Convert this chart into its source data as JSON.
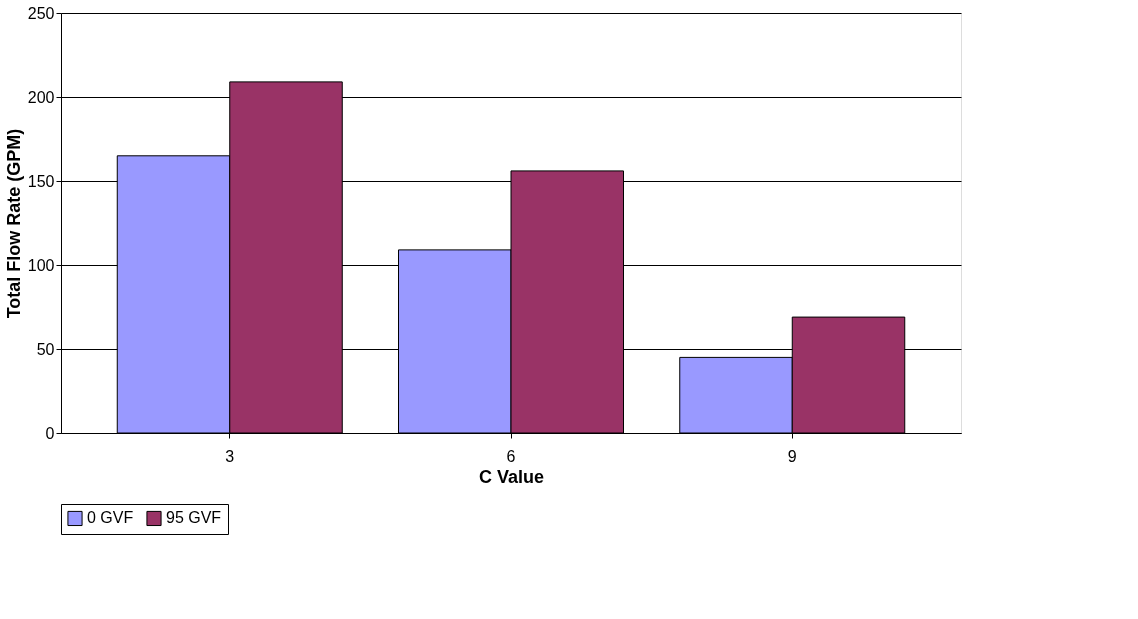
{
  "chart_data": {
    "type": "bar",
    "xlabel": "C Value",
    "ylabel": "Total Flow Rate (GPM)",
    "categories": [
      "3",
      "6",
      "9"
    ],
    "series": [
      {
        "name": "0 GVF",
        "color": "#9999ff",
        "values": [
          165,
          109,
          45
        ]
      },
      {
        "name": "95 GVF",
        "color": "#993366",
        "values": [
          209,
          156,
          69
        ]
      }
    ],
    "ylim": [
      0,
      250
    ],
    "yticks": [
      0,
      50,
      100,
      150,
      200,
      250
    ],
    "grid": "y",
    "legend": "bottom"
  }
}
